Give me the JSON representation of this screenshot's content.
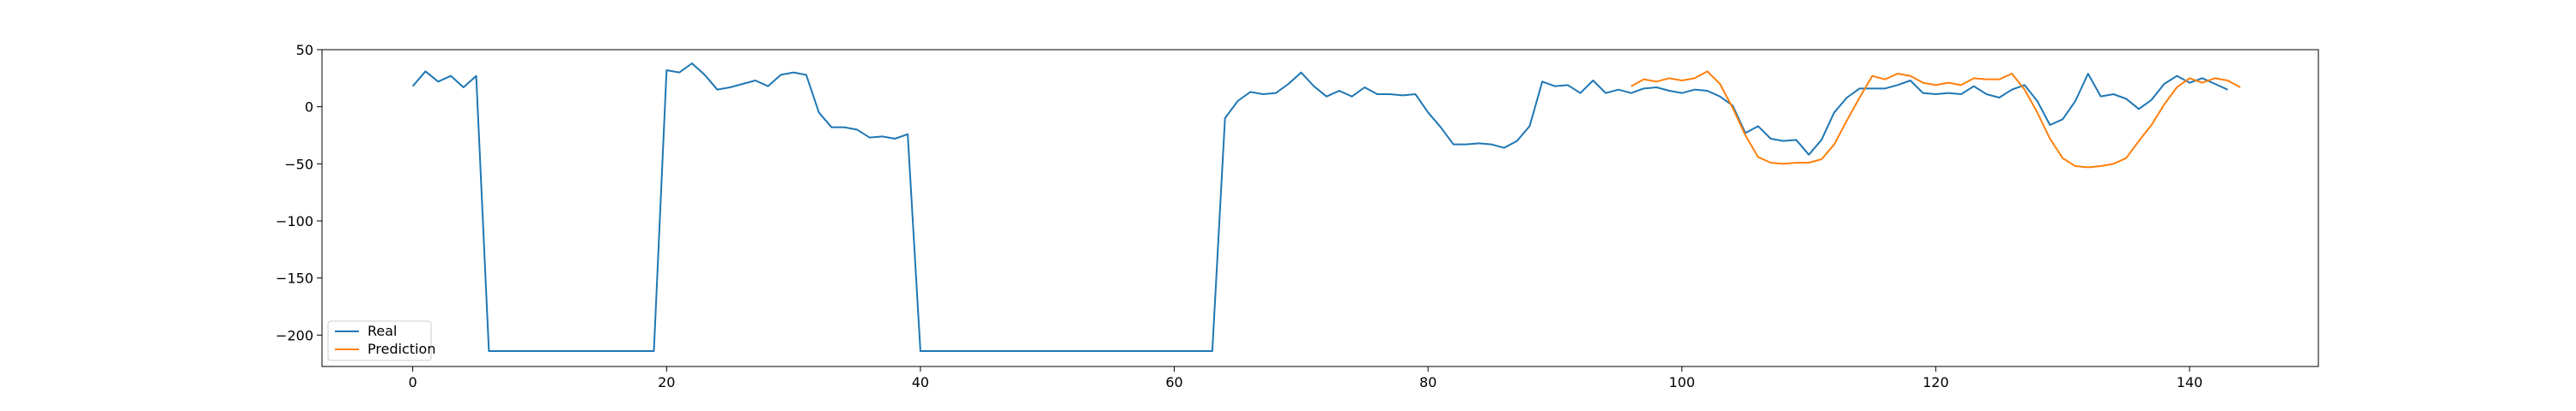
{
  "chart_data": {
    "type": "line",
    "title": "",
    "xlabel": "",
    "ylabel": "",
    "xlim": [
      -7.15,
      150.15
    ],
    "ylim": [
      -227.5,
      50
    ],
    "grid": false,
    "legend_placement": "lower-left",
    "x_ticks": [
      0,
      20,
      40,
      60,
      80,
      100,
      120,
      140
    ],
    "y_ticks": [
      50,
      0,
      -50,
      -100,
      -150,
      -200
    ],
    "series": [
      {
        "name": "Real",
        "color": "#1f77b4",
        "x0": 0,
        "values": [
          18,
          31,
          22,
          27,
          17,
          27,
          -214,
          -214,
          -214,
          -214,
          -214,
          -214,
          -214,
          -214,
          -214,
          -214,
          -214,
          -214,
          -214,
          -214,
          32,
          30,
          38,
          28,
          15,
          17,
          20,
          23,
          18,
          28,
          30,
          28,
          -5,
          -18,
          -18,
          -20,
          -27,
          -26,
          -28,
          -24,
          -214,
          -214,
          -214,
          -214,
          -214,
          -214,
          -214,
          -214,
          -214,
          -214,
          -214,
          -214,
          -214,
          -214,
          -214,
          -214,
          -214,
          -214,
          -214,
          -214,
          -214,
          -214,
          -214,
          -214,
          -10,
          5,
          13,
          11,
          12,
          20,
          30,
          18,
          9,
          14,
          9,
          17,
          11,
          11,
          10,
          11,
          -5,
          -18,
          -33,
          -33,
          -32,
          -33,
          -36,
          -30,
          -17,
          22,
          18,
          19,
          12,
          23,
          12,
          15,
          12,
          16,
          17,
          14,
          12,
          15,
          14,
          9,
          1,
          -23,
          -17,
          -28,
          -30,
          -29,
          -42,
          -29,
          -5,
          8,
          16,
          16,
          16,
          19,
          23,
          12,
          11,
          12,
          11,
          18,
          11,
          8,
          15,
          19,
          5,
          -16,
          -11,
          5,
          29,
          9,
          11,
          7,
          -2,
          6,
          20,
          27,
          21,
          25,
          20,
          15
        ]
      },
      {
        "name": "Prediction",
        "color": "#ff7f0e",
        "x0": 96,
        "values": [
          18,
          24,
          22,
          25,
          23,
          25,
          31,
          20,
          -1,
          -25,
          -44,
          -49,
          -50,
          -49,
          -49,
          -46,
          -33,
          -12,
          8,
          27,
          24,
          29,
          27,
          21,
          19,
          21,
          19,
          25,
          24,
          24,
          29,
          15,
          -5,
          -28,
          -45,
          -52,
          -53,
          -52,
          -50,
          -45,
          -30,
          -16,
          2,
          17,
          25,
          21,
          25,
          23,
          17
        ]
      }
    ]
  }
}
